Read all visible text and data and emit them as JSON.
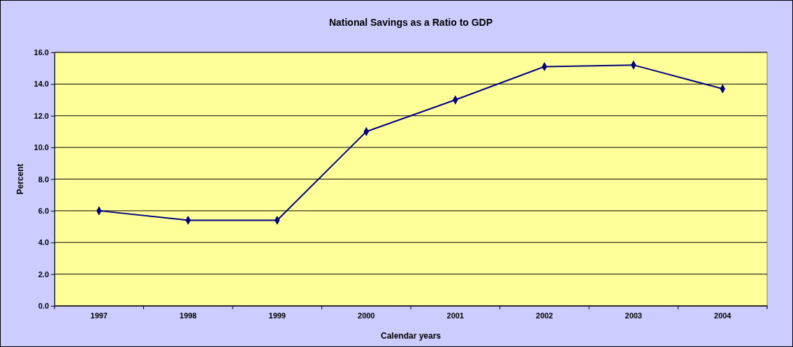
{
  "chart_data": {
    "type": "line",
    "title": "National Savings as a Ratio to GDP",
    "xlabel": "Calendar years",
    "ylabel": "Percent",
    "categories": [
      "1997",
      "1998",
      "1999",
      "2000",
      "2001",
      "2002",
      "2003",
      "2004"
    ],
    "series": [
      {
        "color": "#000080",
        "values": [
          6.0,
          5.4,
          5.4,
          11.0,
          13.0,
          15.1,
          15.2,
          13.7
        ]
      }
    ],
    "ylim": [
      0,
      16
    ],
    "yticks": [
      {
        "value": 0,
        "label": "0.0"
      },
      {
        "value": 2,
        "label": "2.0"
      },
      {
        "value": 4,
        "label": "4.0"
      },
      {
        "value": 6,
        "label": "6.0"
      },
      {
        "value": 8,
        "label": "8.0"
      },
      {
        "value": 10,
        "label": "10.0"
      },
      {
        "value": 12,
        "label": "12.0"
      },
      {
        "value": 14,
        "label": "14.0"
      },
      {
        "value": 16,
        "label": "16.0"
      }
    ],
    "grid": "y",
    "marker": "diamond",
    "line_style": "solid"
  }
}
